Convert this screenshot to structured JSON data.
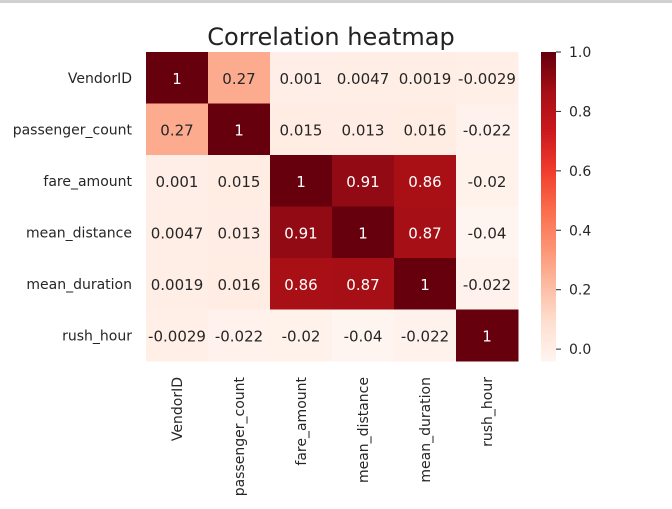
{
  "chart_data": {
    "type": "heatmap",
    "title": "Correlation heatmap",
    "rows": [
      "VendorID",
      "passenger_count",
      "fare_amount",
      "mean_distance",
      "mean_duration",
      "rush_hour"
    ],
    "columns": [
      "VendorID",
      "passenger_count",
      "fare_amount",
      "mean_distance",
      "mean_duration",
      "rush_hour"
    ],
    "values": [
      [
        1,
        0.27,
        0.001,
        0.0047,
        0.0019,
        -0.0029
      ],
      [
        0.27,
        1,
        0.015,
        0.013,
        0.016,
        -0.022
      ],
      [
        0.001,
        0.015,
        1,
        0.91,
        0.86,
        -0.02
      ],
      [
        0.0047,
        0.013,
        0.91,
        1,
        0.87,
        -0.04
      ],
      [
        0.0019,
        0.016,
        0.86,
        0.87,
        1,
        -0.022
      ],
      [
        -0.0029,
        -0.022,
        -0.02,
        -0.04,
        -0.022,
        1
      ]
    ],
    "value_labels": [
      [
        "1",
        "0.27",
        "0.001",
        "0.0047",
        "0.0019",
        "-0.0029"
      ],
      [
        "0.27",
        "1",
        "0.015",
        "0.013",
        "0.016",
        "-0.022"
      ],
      [
        "0.001",
        "0.015",
        "1",
        "0.91",
        "0.86",
        "-0.02"
      ],
      [
        "0.0047",
        "0.013",
        "0.91",
        "1",
        "0.87",
        "-0.04"
      ],
      [
        "0.0019",
        "0.016",
        "0.86",
        "0.87",
        "1",
        "-0.022"
      ],
      [
        "-0.0029",
        "-0.022",
        "-0.02",
        "-0.04",
        "-0.022",
        "1"
      ]
    ],
    "colorbar": {
      "range": [
        -0.04,
        1.0
      ],
      "ticks": [
        0.0,
        0.2,
        0.4,
        0.6,
        0.8,
        1.0
      ],
      "tick_labels": [
        "0.0",
        "0.2",
        "0.4",
        "0.6",
        "0.8",
        "1.0"
      ]
    },
    "colormap": "Reds",
    "colors": [
      "#fff5f0",
      "#fee0d2",
      "#fcbba1",
      "#fc9272",
      "#fb6a4a",
      "#ef3b2c",
      "#cb181d",
      "#a50f15",
      "#67000d"
    ],
    "grid": false,
    "legend": "right"
  }
}
